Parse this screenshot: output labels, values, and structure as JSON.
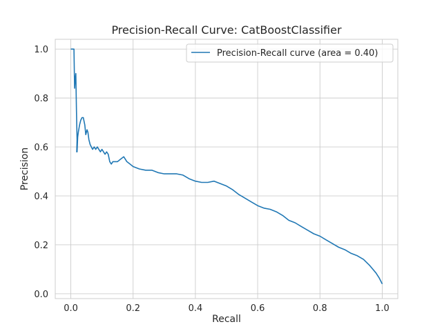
{
  "chart_data": {
    "type": "line",
    "title": "Precision-Recall Curve: CatBoostClassifier",
    "xlabel": "Recall",
    "ylabel": "Precision",
    "xlim": [
      -0.05,
      1.05
    ],
    "ylim": [
      -0.02,
      1.04
    ],
    "xticks": [
      0.0,
      0.2,
      0.4,
      0.6,
      0.8,
      1.0
    ],
    "xtick_labels": [
      "0.0",
      "0.2",
      "0.4",
      "0.6",
      "0.8",
      "1.0"
    ],
    "yticks": [
      0.0,
      0.2,
      0.4,
      0.6,
      0.8,
      1.0
    ],
    "ytick_labels": [
      "0.0",
      "0.2",
      "0.4",
      "0.6",
      "0.8",
      "1.0"
    ],
    "grid": true,
    "legend_position": "top-right",
    "series": [
      {
        "name": "Precision-Recall curve (area = 0.40)",
        "color": "#1f77b4",
        "x": [
          0.0,
          0.005,
          0.01,
          0.012,
          0.014,
          0.016,
          0.018,
          0.02,
          0.019,
          0.021,
          0.02,
          0.022,
          0.024,
          0.028,
          0.032,
          0.036,
          0.04,
          0.045,
          0.048,
          0.052,
          0.055,
          0.058,
          0.062,
          0.066,
          0.07,
          0.075,
          0.08,
          0.085,
          0.09,
          0.095,
          0.1,
          0.105,
          0.11,
          0.115,
          0.12,
          0.125,
          0.13,
          0.135,
          0.14,
          0.15,
          0.16,
          0.17,
          0.18,
          0.19,
          0.2,
          0.21,
          0.22,
          0.24,
          0.26,
          0.28,
          0.3,
          0.32,
          0.34,
          0.36,
          0.38,
          0.4,
          0.42,
          0.44,
          0.46,
          0.48,
          0.5,
          0.52,
          0.54,
          0.56,
          0.58,
          0.6,
          0.62,
          0.64,
          0.66,
          0.68,
          0.7,
          0.72,
          0.74,
          0.76,
          0.78,
          0.8,
          0.82,
          0.84,
          0.86,
          0.88,
          0.9,
          0.92,
          0.94,
          0.96,
          0.98,
          0.99,
          1.0
        ],
        "y": [
          1.0,
          1.0,
          1.0,
          0.84,
          0.88,
          0.9,
          0.75,
          0.63,
          0.58,
          0.62,
          0.58,
          0.64,
          0.66,
          0.69,
          0.71,
          0.72,
          0.72,
          0.69,
          0.65,
          0.67,
          0.66,
          0.63,
          0.61,
          0.6,
          0.59,
          0.6,
          0.59,
          0.6,
          0.59,
          0.58,
          0.59,
          0.58,
          0.57,
          0.58,
          0.57,
          0.54,
          0.53,
          0.54,
          0.54,
          0.54,
          0.55,
          0.56,
          0.54,
          0.53,
          0.52,
          0.515,
          0.51,
          0.505,
          0.505,
          0.495,
          0.49,
          0.49,
          0.49,
          0.485,
          0.47,
          0.46,
          0.455,
          0.455,
          0.46,
          0.45,
          0.44,
          0.425,
          0.405,
          0.39,
          0.375,
          0.36,
          0.35,
          0.345,
          0.335,
          0.32,
          0.3,
          0.29,
          0.275,
          0.26,
          0.245,
          0.235,
          0.22,
          0.205,
          0.19,
          0.18,
          0.165,
          0.155,
          0.14,
          0.115,
          0.085,
          0.065,
          0.04
        ]
      }
    ]
  }
}
